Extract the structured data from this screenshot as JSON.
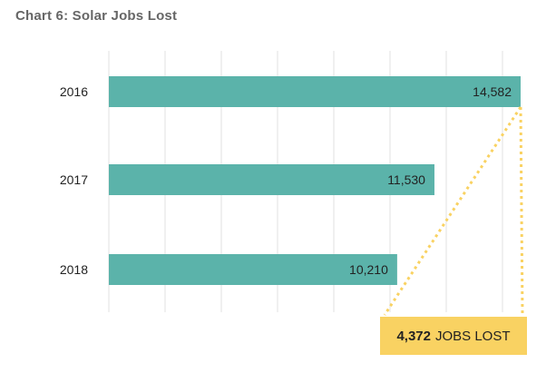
{
  "chart_data": {
    "type": "bar",
    "orientation": "horizontal",
    "title": "Chart 6: Solar Jobs Lost",
    "categories": [
      "2016",
      "2017",
      "2018"
    ],
    "values": [
      14582,
      11530,
      10210
    ],
    "value_labels": [
      "14,582",
      "11,530",
      "10,210"
    ],
    "xlim": [
      0,
      14582
    ],
    "grid": true,
    "bar_color": "#5bb3aa",
    "annotation": {
      "value": "4,372",
      "text": "JOBS LOST",
      "color": "#f9d262",
      "from_value": 10210,
      "to_value": 14582
    }
  }
}
